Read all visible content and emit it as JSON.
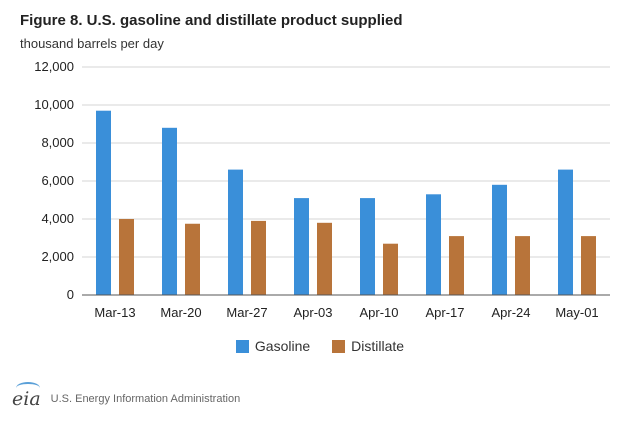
{
  "chart_data": {
    "type": "bar",
    "title": "Figure 8. U.S. gasoline and distillate product supplied",
    "subtitle": "thousand barrels per day",
    "categories": [
      "Mar-13",
      "Mar-20",
      "Mar-27",
      "Apr-03",
      "Apr-10",
      "Apr-17",
      "Apr-24",
      "May-01"
    ],
    "series": [
      {
        "name": "Gasoline",
        "color": "#3a8fd9",
        "values": [
          9700,
          8800,
          6600,
          5100,
          5100,
          5300,
          5800,
          6600
        ]
      },
      {
        "name": "Distillate",
        "color": "#b8743a",
        "values": [
          4000,
          3750,
          3900,
          3800,
          2700,
          3100,
          3100,
          3100
        ]
      }
    ],
    "ylim": [
      0,
      12000
    ],
    "yticks": [
      0,
      2000,
      4000,
      6000,
      8000,
      10000,
      12000
    ],
    "ytick_labels": [
      "0",
      "2,000",
      "4,000",
      "6,000",
      "8,000",
      "10,000",
      "12,000"
    ],
    "grid": true,
    "legend": "bottom-center"
  },
  "footer": {
    "logo_text": "eia",
    "source": "U.S. Energy Information Administration"
  }
}
